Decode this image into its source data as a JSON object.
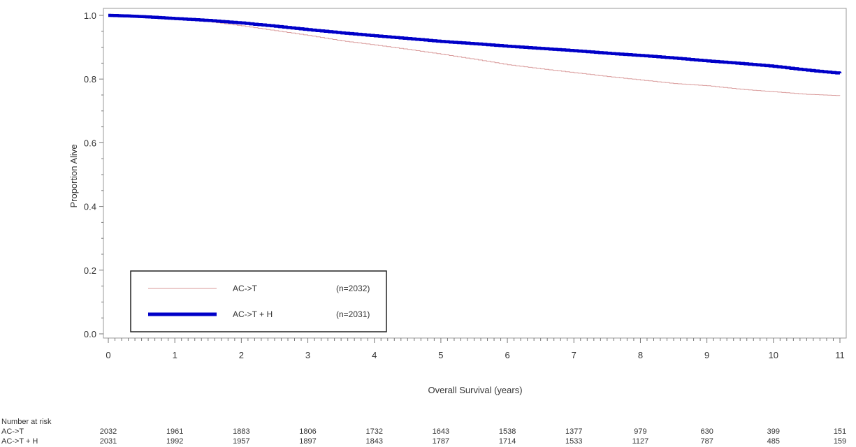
{
  "chart_data": {
    "type": "line",
    "xlabel": "Overall Survival (years)",
    "ylabel": "Proportion Alive",
    "xlim": [
      0,
      11
    ],
    "ylim": [
      0,
      1.0
    ],
    "x_ticks": [
      "0",
      "1",
      "2",
      "3",
      "4",
      "5",
      "6",
      "7",
      "8",
      "9",
      "10",
      "11"
    ],
    "y_ticks": [
      "0.0",
      "0.2",
      "0.4",
      "0.6",
      "0.8",
      "1.0"
    ],
    "grid": false,
    "legend_position": "bottom-left",
    "series": [
      {
        "name": "AC->T",
        "n_label": "(n=2032)",
        "color": "#d99a9a",
        "x": [
          0,
          0.3,
          0.6,
          1.0,
          1.5,
          2.0,
          2.5,
          3.0,
          3.5,
          4.0,
          4.5,
          5.0,
          5.5,
          6.0,
          6.5,
          7.0,
          7.5,
          8.0,
          8.5,
          9.0,
          9.5,
          10.0,
          10.5,
          11.0
        ],
        "y": [
          1.0,
          0.997,
          0.993,
          0.988,
          0.98,
          0.967,
          0.952,
          0.937,
          0.92,
          0.907,
          0.893,
          0.878,
          0.862,
          0.845,
          0.832,
          0.82,
          0.808,
          0.797,
          0.786,
          0.779,
          0.768,
          0.76,
          0.752,
          0.748
        ]
      },
      {
        "name": "AC->T + H",
        "n_label": "(n=2031)",
        "color": "#0000c8",
        "x": [
          0,
          0.3,
          0.6,
          1.0,
          1.5,
          2.0,
          2.5,
          3.0,
          3.5,
          4.0,
          4.5,
          5.0,
          5.5,
          6.0,
          6.5,
          7.0,
          7.5,
          8.0,
          8.5,
          9.0,
          9.5,
          10.0,
          10.5,
          11.0
        ],
        "y": [
          1.0,
          0.998,
          0.995,
          0.99,
          0.984,
          0.976,
          0.966,
          0.955,
          0.945,
          0.936,
          0.927,
          0.918,
          0.911,
          0.903,
          0.896,
          0.889,
          0.881,
          0.874,
          0.866,
          0.857,
          0.849,
          0.84,
          0.828,
          0.818
        ]
      }
    ],
    "risk_table": {
      "title": "Number at risk",
      "rows": [
        {
          "label": "AC->T",
          "values": [
            "2032",
            "1961",
            "1883",
            "1806",
            "1732",
            "1643",
            "1538",
            "1377",
            "979",
            "630",
            "399",
            "151"
          ]
        },
        {
          "label": "AC->T + H",
          "values": [
            "2031",
            "1992",
            "1957",
            "1897",
            "1843",
            "1787",
            "1714",
            "1533",
            "1127",
            "787",
            "485",
            "159"
          ]
        }
      ]
    }
  }
}
